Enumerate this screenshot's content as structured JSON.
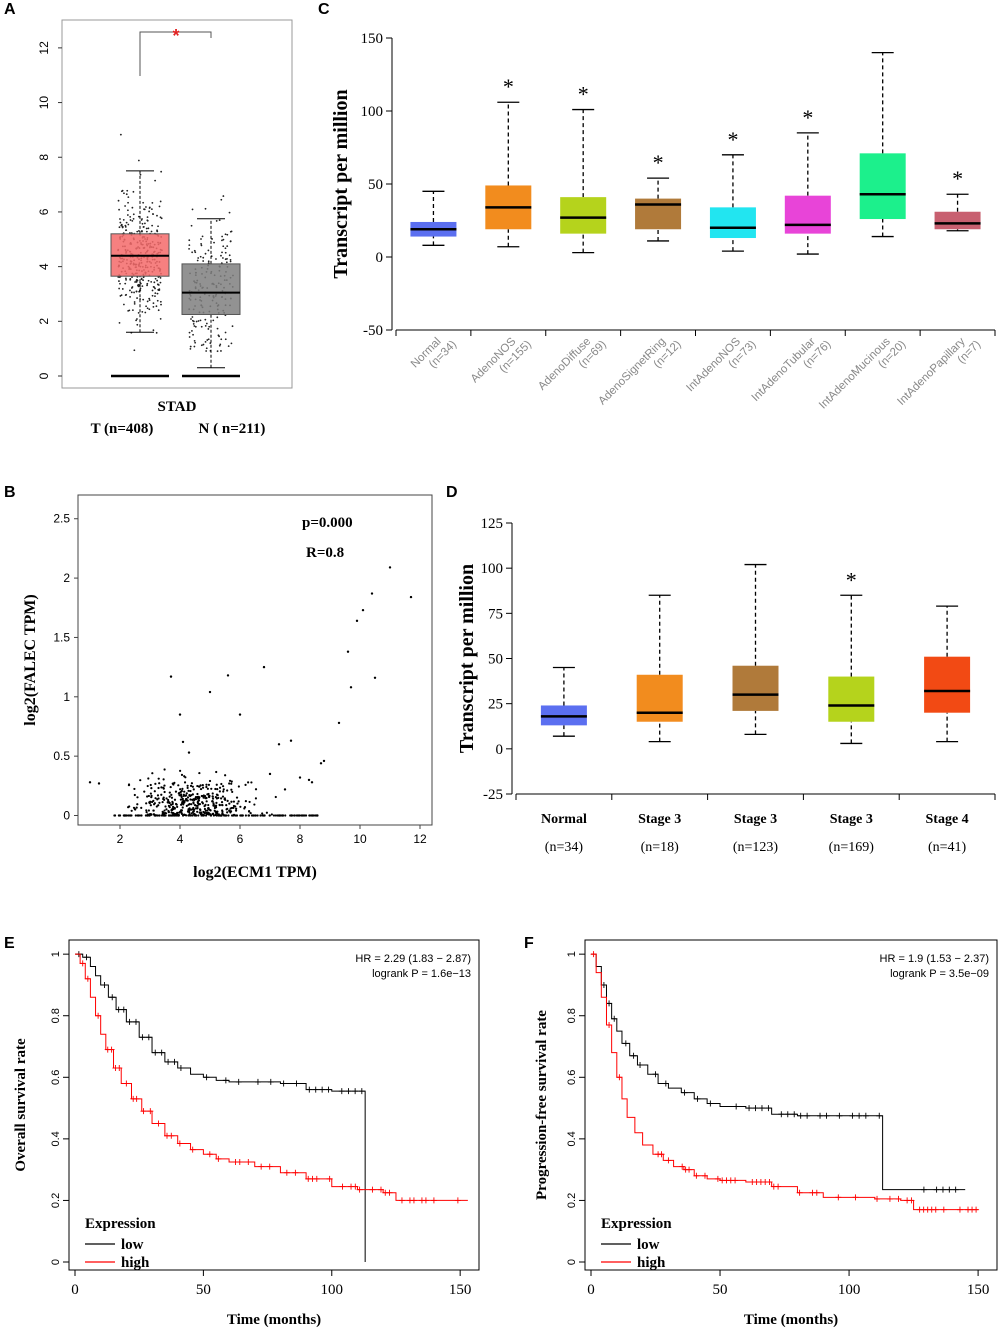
{
  "chart_data": [
    {
      "id": "A",
      "type": "box",
      "panel_label": "A",
      "title": "STAD",
      "ylim": [
        0,
        12.8
      ],
      "yticks": [
        0,
        2,
        4,
        6,
        8,
        10,
        12
      ],
      "significance": "*",
      "groups": [
        {
          "label": "T (n=408)",
          "color": "#f46a6a",
          "q1": 3.65,
          "median": 4.4,
          "q3": 5.2,
          "whisker_low": 1.6,
          "whisker_high": 7.5,
          "zero_line": true
        },
        {
          "label": "N ( n=211)",
          "color": "#7f7f7f",
          "q1": 2.25,
          "median": 3.05,
          "q3": 4.1,
          "whisker_low": 0.3,
          "whisker_high": 5.75,
          "zero_line": true
        }
      ]
    },
    {
      "id": "C",
      "type": "box",
      "panel_label": "C",
      "ylabel": "Transcript per million",
      "ylim": [
        -50,
        150
      ],
      "yticks": [
        -50,
        0,
        50,
        100,
        150
      ],
      "groups": [
        {
          "label": "Normal",
          "n": "(n=34)",
          "color": "#5b6ff0",
          "q1": 14,
          "median": 19,
          "q3": 24,
          "whisker_low": 8,
          "whisker_high": 45,
          "star": false
        },
        {
          "label": "AdenoNOS",
          "n": "(n=155)",
          "color": "#f28c1e",
          "q1": 19,
          "median": 34,
          "q3": 49,
          "whisker_low": 7,
          "whisker_high": 106,
          "star": true
        },
        {
          "label": "AdenoDiffuse",
          "n": "(n=69)",
          "color": "#b5d31c",
          "q1": 16,
          "median": 27,
          "q3": 41,
          "whisker_low": 3,
          "whisker_high": 101,
          "star": true
        },
        {
          "label": "AdenoSignetRing",
          "n": "(n=12)",
          "color": "#b07a3a",
          "q1": 19,
          "median": 36,
          "q3": 40,
          "whisker_low": 11,
          "whisker_high": 54,
          "star": true
        },
        {
          "label": "IntAdenoNOS",
          "n": "(n=73)",
          "color": "#22e5f0",
          "q1": 13,
          "median": 20,
          "q3": 34,
          "whisker_low": 4,
          "whisker_high": 70,
          "star": true
        },
        {
          "label": "IntAdenoTubular",
          "n": "(n=76)",
          "color": "#e844d8",
          "q1": 16,
          "median": 22,
          "q3": 42,
          "whisker_low": 2,
          "whisker_high": 85,
          "star": true
        },
        {
          "label": "IntAdenoMucinous",
          "n": "(n=20)",
          "color": "#1cf08c",
          "q1": 26,
          "median": 43,
          "q3": 71,
          "whisker_low": 14,
          "whisker_high": 140,
          "star": false
        },
        {
          "label": "IntAdenoPapillary",
          "n": "(n=7)",
          "color": "#c86070",
          "q1": 19,
          "median": 23,
          "q3": 31,
          "whisker_low": 18,
          "whisker_high": 43,
          "star": true
        }
      ],
      "star_symbol": "*"
    },
    {
      "id": "B",
      "type": "scatter",
      "panel_label": "B",
      "xlabel": "log2(ECM1 TPM)",
      "ylabel": "log2(FALEC TPM)",
      "xlim": [
        0.6,
        12.4
      ],
      "ylim": [
        -0.08,
        2.7
      ],
      "xticks": [
        2,
        4,
        6,
        8,
        10,
        12
      ],
      "yticks": [
        0.0,
        0.5,
        1.0,
        1.5,
        2.0,
        2.5
      ],
      "annotations": [
        "p=0.000",
        "R=0.8"
      ],
      "highlight_points": [
        [
          1.0,
          0.28
        ],
        [
          1.3,
          0.27
        ],
        [
          3.7,
          1.17
        ],
        [
          4.0,
          0.85
        ],
        [
          4.1,
          0.62
        ],
        [
          4.3,
          0.53
        ],
        [
          5.0,
          1.04
        ],
        [
          5.6,
          1.18
        ],
        [
          6.0,
          0.85
        ],
        [
          6.8,
          1.25
        ],
        [
          7.3,
          0.6
        ],
        [
          7.7,
          0.63
        ],
        [
          8.0,
          0.32
        ],
        [
          8.3,
          0.3
        ],
        [
          8.4,
          0.28
        ],
        [
          9.3,
          0.78
        ],
        [
          9.6,
          1.38
        ],
        [
          9.7,
          1.08
        ],
        [
          9.9,
          1.64
        ],
        [
          10.1,
          1.73
        ],
        [
          10.4,
          1.87
        ],
        [
          10.5,
          1.16
        ],
        [
          11.0,
          2.09
        ],
        [
          11.7,
          1.84
        ],
        [
          7.0,
          0.35
        ],
        [
          7.5,
          0.22
        ],
        [
          8.7,
          0.44
        ],
        [
          8.8,
          0.46
        ]
      ]
    },
    {
      "id": "D",
      "type": "box",
      "panel_label": "D",
      "ylabel": "Transcript per million",
      "ylim": [
        -25,
        125
      ],
      "yticks": [
        -25,
        0,
        25,
        50,
        75,
        100,
        125
      ],
      "groups": [
        {
          "label": "Normal",
          "n": "(n=34)",
          "color": "#5b6ff0",
          "q1": 13,
          "median": 18,
          "q3": 24,
          "whisker_low": 7,
          "whisker_high": 45,
          "star": false
        },
        {
          "label": "Stage 3",
          "n": "(n=18)",
          "color": "#f28c1e",
          "q1": 15,
          "median": 20,
          "q3": 41,
          "whisker_low": 4,
          "whisker_high": 85,
          "star": false
        },
        {
          "label": "Stage 3",
          "n": "(n=123)",
          "color": "#b07a3a",
          "q1": 21,
          "median": 30,
          "q3": 46,
          "whisker_low": 8,
          "whisker_high": 102,
          "star": false
        },
        {
          "label": "Stage 3",
          "n": "(n=169)",
          "color": "#b5d31c",
          "q1": 15,
          "median": 24,
          "q3": 40,
          "whisker_low": 3,
          "whisker_high": 85,
          "star": true
        },
        {
          "label": "Stage 4",
          "n": "(n=41)",
          "color": "#f24a14",
          "q1": 20,
          "median": 32,
          "q3": 51,
          "whisker_low": 4,
          "whisker_high": 79,
          "star": false
        }
      ],
      "star_symbol": "*"
    },
    {
      "id": "E",
      "type": "line",
      "panel_label": "E",
      "xlabel": "Time (months)",
      "ylabel": "Overall survival rate",
      "xlim": [
        0,
        155
      ],
      "ylim": [
        0,
        1.02
      ],
      "xticks": [
        0,
        50,
        100,
        150
      ],
      "yticks": [
        0.0,
        0.2,
        0.4,
        0.6,
        0.8,
        1.0
      ],
      "stat_lines": [
        "HR = 2.29 (1.83 − 2.87)",
        "logrank P = 1.6e−13"
      ],
      "legend_title": "Expression",
      "series": [
        {
          "name": "low",
          "color": "#000000",
          "points": [
            [
              0,
              1
            ],
            [
              3,
              0.99
            ],
            [
              6,
              0.96
            ],
            [
              8,
              0.93
            ],
            [
              10,
              0.9
            ],
            [
              13,
              0.86
            ],
            [
              16,
              0.82
            ],
            [
              20,
              0.78
            ],
            [
              25,
              0.73
            ],
            [
              30,
              0.68
            ],
            [
              35,
              0.65
            ],
            [
              40,
              0.63
            ],
            [
              45,
              0.61
            ],
            [
              50,
              0.6
            ],
            [
              55,
              0.59
            ],
            [
              60,
              0.585
            ],
            [
              70,
              0.585
            ],
            [
              80,
              0.58
            ],
            [
              90,
              0.56
            ],
            [
              100,
              0.555
            ],
            [
              113,
              0.555
            ],
            [
              113,
              0.0
            ]
          ]
        },
        {
          "name": "high",
          "color": "#ff0000",
          "points": [
            [
              0,
              1
            ],
            [
              2,
              0.97
            ],
            [
              4,
              0.92
            ],
            [
              6,
              0.86
            ],
            [
              8,
              0.8
            ],
            [
              10,
              0.74
            ],
            [
              12,
              0.69
            ],
            [
              15,
              0.63
            ],
            [
              18,
              0.58
            ],
            [
              22,
              0.53
            ],
            [
              26,
              0.49
            ],
            [
              30,
              0.45
            ],
            [
              35,
              0.41
            ],
            [
              40,
              0.385
            ],
            [
              45,
              0.365
            ],
            [
              50,
              0.35
            ],
            [
              55,
              0.335
            ],
            [
              60,
              0.325
            ],
            [
              70,
              0.31
            ],
            [
              80,
              0.29
            ],
            [
              90,
              0.27
            ],
            [
              100,
              0.245
            ],
            [
              110,
              0.235
            ],
            [
              120,
              0.225
            ],
            [
              125,
              0.2
            ],
            [
              153,
              0.2
            ]
          ]
        }
      ]
    },
    {
      "id": "F",
      "type": "line",
      "panel_label": "F",
      "xlabel": "Time (months)",
      "ylabel": "Progression-free survival rate",
      "xlim": [
        0,
        155
      ],
      "ylim": [
        0,
        1.02
      ],
      "xticks": [
        0,
        50,
        100,
        150
      ],
      "yticks": [
        0.0,
        0.2,
        0.4,
        0.6,
        0.8,
        1.0
      ],
      "stat_lines": [
        "HR = 1.9 (1.53 − 2.37)",
        "logrank P = 3.5e−09"
      ],
      "legend_title": "Expression",
      "series": [
        {
          "name": "low",
          "color": "#000000",
          "points": [
            [
              0,
              1
            ],
            [
              2,
              0.96
            ],
            [
              4,
              0.9
            ],
            [
              6,
              0.84
            ],
            [
              8,
              0.79
            ],
            [
              10,
              0.75
            ],
            [
              12,
              0.71
            ],
            [
              15,
              0.67
            ],
            [
              18,
              0.64
            ],
            [
              22,
              0.61
            ],
            [
              26,
              0.58
            ],
            [
              30,
              0.565
            ],
            [
              35,
              0.55
            ],
            [
              40,
              0.53
            ],
            [
              45,
              0.515
            ],
            [
              50,
              0.505
            ],
            [
              60,
              0.5
            ],
            [
              70,
              0.48
            ],
            [
              80,
              0.475
            ],
            [
              90,
              0.475
            ],
            [
              100,
              0.475
            ],
            [
              113,
              0.475
            ],
            [
              113,
              0.235
            ],
            [
              145,
              0.235
            ]
          ]
        },
        {
          "name": "high",
          "color": "#ff0000",
          "points": [
            [
              0,
              1
            ],
            [
              2,
              0.94
            ],
            [
              4,
              0.86
            ],
            [
              6,
              0.77
            ],
            [
              8,
              0.68
            ],
            [
              10,
              0.6
            ],
            [
              12,
              0.53
            ],
            [
              14,
              0.47
            ],
            [
              17,
              0.42
            ],
            [
              20,
              0.38
            ],
            [
              24,
              0.35
            ],
            [
              28,
              0.33
            ],
            [
              32,
              0.31
            ],
            [
              36,
              0.3
            ],
            [
              40,
              0.28
            ],
            [
              45,
              0.27
            ],
            [
              50,
              0.265
            ],
            [
              60,
              0.26
            ],
            [
              70,
              0.245
            ],
            [
              80,
              0.225
            ],
            [
              90,
              0.21
            ],
            [
              100,
              0.21
            ],
            [
              110,
              0.205
            ],
            [
              120,
              0.2
            ],
            [
              125,
              0.17
            ],
            [
              150,
              0.17
            ]
          ]
        }
      ]
    }
  ]
}
